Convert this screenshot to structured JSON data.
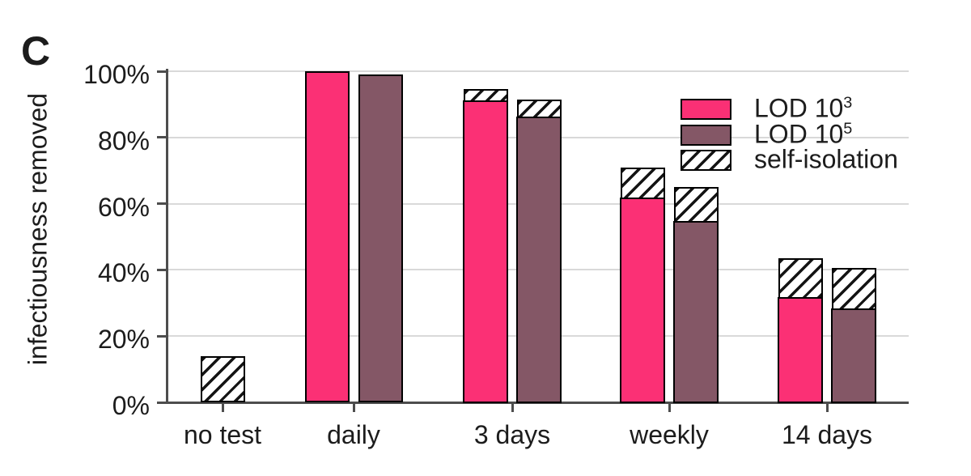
{
  "chart_data": {
    "type": "bar",
    "panel_label": "C",
    "title": "",
    "xlabel": "",
    "ylabel": "infectiousness removed",
    "ylim": [
      0,
      100
    ],
    "grid": "horizontal",
    "y_ticks": [
      {
        "label": "0%",
        "value": 0
      },
      {
        "label": "20%",
        "value": 20
      },
      {
        "label": "40%",
        "value": 40
      },
      {
        "label": "60%",
        "value": 60
      },
      {
        "label": "80%",
        "value": 80
      },
      {
        "label": "100%",
        "value": 100
      }
    ],
    "categories": [
      "no test",
      "daily",
      "3 days",
      "weekly",
      "14 days"
    ],
    "series_note": "bar_top = solid colored portion (%); total_top = top of hatched self-isolation add-on (%)",
    "groups": [
      {
        "label": "no test",
        "bars": [
          {
            "series": "self-isolation",
            "fill": "hatch",
            "bar_top": 0,
            "total_top": 14
          }
        ]
      },
      {
        "label": "daily",
        "bars": [
          {
            "series": "LOD 10^3",
            "fill": "lod3",
            "bar_top": 100,
            "total_top": 100
          },
          {
            "series": "LOD 10^5",
            "fill": "lod5",
            "bar_top": 99,
            "total_top": 99
          }
        ]
      },
      {
        "label": "3 days",
        "bars": [
          {
            "series": "LOD 10^3",
            "fill": "lod3",
            "bar_top": 91.5,
            "total_top": 94.5
          },
          {
            "series": "LOD 10^5",
            "fill": "lod5",
            "bar_top": 86.5,
            "total_top": 91.5
          }
        ]
      },
      {
        "label": "weekly",
        "bars": [
          {
            "series": "LOD 10^3",
            "fill": "lod3",
            "bar_top": 62,
            "total_top": 71
          },
          {
            "series": "LOD 10^5",
            "fill": "lod5",
            "bar_top": 55,
            "total_top": 65
          }
        ]
      },
      {
        "label": "14 days",
        "bars": [
          {
            "series": "LOD 10^3",
            "fill": "lod3",
            "bar_top": 32,
            "total_top": 43.5
          },
          {
            "series": "LOD 10^5",
            "fill": "lod5",
            "bar_top": 28.5,
            "total_top": 40.5
          }
        ]
      }
    ],
    "legend": {
      "position": "upper right",
      "items": [
        {
          "label": "LOD 10",
          "sup": "3",
          "swatch": "lod3"
        },
        {
          "label": "LOD 10",
          "sup": "5",
          "swatch": "lod5"
        },
        {
          "label": "self-isolation",
          "sup": "",
          "swatch": "hatch"
        }
      ]
    },
    "colors": {
      "lod3": "#FB3075",
      "lod5": "#845766",
      "hatch_fg": "#141414",
      "hatch_bg": "#FFFFFF",
      "bar_stroke": "#000000",
      "grid": "#D9D9D9",
      "axis": "#4D4D4D",
      "text": "#1C1C1C"
    }
  }
}
